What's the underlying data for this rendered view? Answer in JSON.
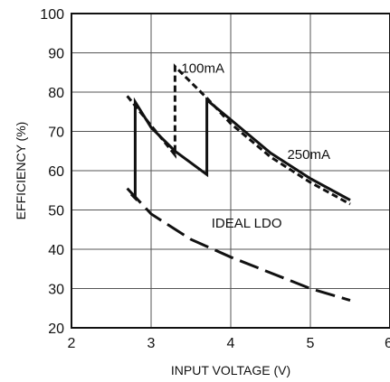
{
  "chart_data": {
    "type": "line",
    "title": "",
    "xlabel": "INPUT VOLTAGE (V)",
    "ylabel": "EFFICIENCY (%)",
    "xlim": [
      2,
      6
    ],
    "ylim": [
      20,
      100
    ],
    "xticks": [
      2,
      3,
      4,
      5,
      6
    ],
    "yticks": [
      20,
      30,
      40,
      50,
      60,
      70,
      80,
      90,
      100
    ],
    "grid": true,
    "series": [
      {
        "name": "100mA",
        "style": "short-dash",
        "points": [
          [
            2.7,
            79
          ],
          [
            3.0,
            71.5
          ],
          [
            3.3,
            64
          ],
          [
            3.3,
            86.5
          ],
          [
            3.7,
            78.5
          ],
          [
            4.0,
            72
          ],
          [
            4.5,
            63.5
          ],
          [
            5.0,
            57
          ],
          [
            5.5,
            51.5
          ]
        ]
      },
      {
        "name": "250mA",
        "style": "solid",
        "points": [
          [
            2.75,
            54
          ],
          [
            2.8,
            53
          ],
          [
            2.8,
            77.5
          ],
          [
            3.0,
            71
          ],
          [
            3.3,
            65
          ],
          [
            3.7,
            59
          ],
          [
            3.7,
            78
          ],
          [
            4.0,
            73
          ],
          [
            4.5,
            64.5
          ],
          [
            5.0,
            58
          ],
          [
            5.5,
            52.5
          ]
        ]
      },
      {
        "name": "IDEAL LDO",
        "style": "long-dash",
        "points": [
          [
            2.7,
            55.5
          ],
          [
            3.0,
            49
          ],
          [
            3.5,
            42.5
          ],
          [
            4.0,
            38
          ],
          [
            4.5,
            34
          ],
          [
            5.0,
            30
          ],
          [
            5.5,
            27
          ]
        ]
      }
    ],
    "labels": [
      {
        "text": "100mA",
        "x": 3.65,
        "y": 85
      },
      {
        "text": "250mA",
        "x": 4.98,
        "y": 63
      },
      {
        "text": "IDEAL LDO",
        "x": 4.2,
        "y": 45.5
      }
    ]
  }
}
